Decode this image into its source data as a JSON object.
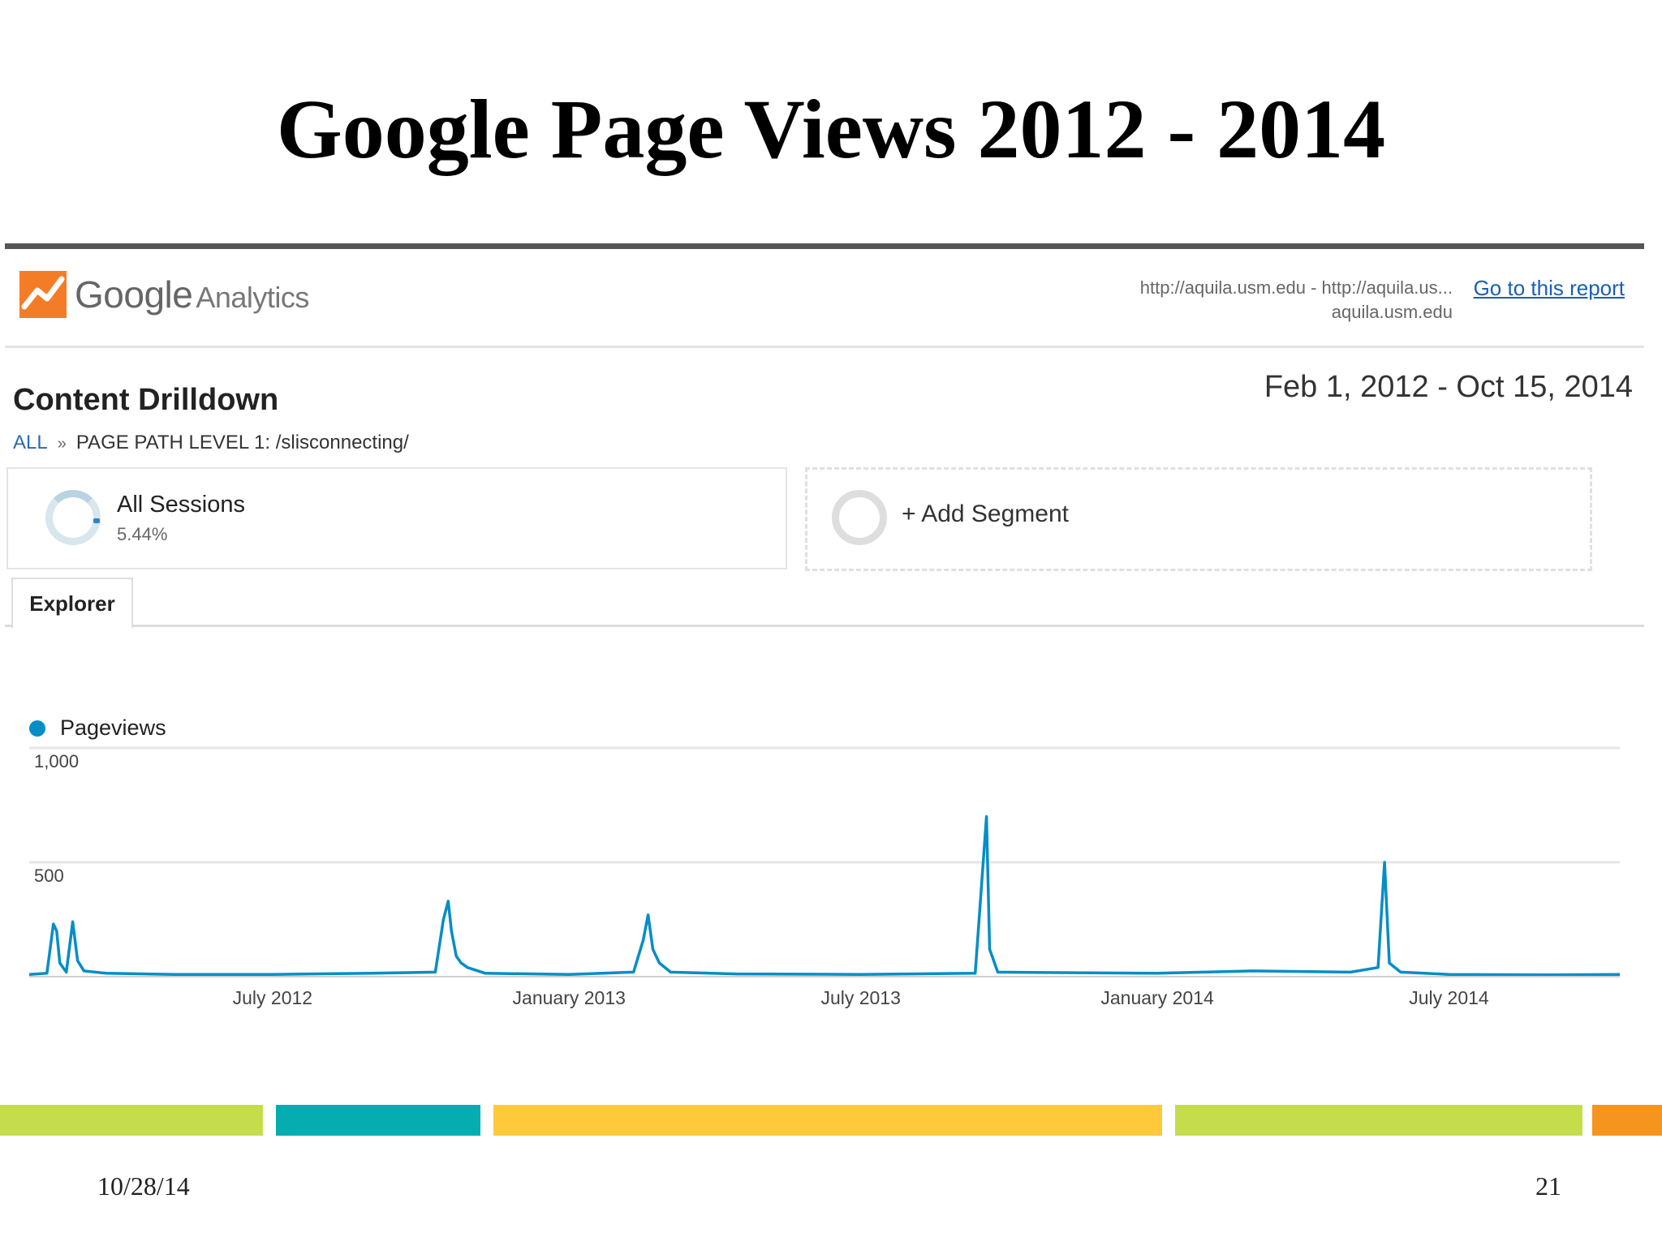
{
  "slide": {
    "title": "Google Page Views 2012 - 2014",
    "footer_date": "10/28/14",
    "page_number": "21",
    "accent_bars": [
      "#c5dd4b",
      "#05adb0",
      "#ffc93c",
      "#c5dd4b",
      "#f7941e"
    ]
  },
  "ga": {
    "brand": "Google",
    "product": "Analytics",
    "site_line1": "http://aquila.usm.edu - http://aquila.us...",
    "site_line2": "aquila.usm.edu",
    "report_link": "Go to this report",
    "report_heading": "Content Drilldown",
    "date_range": "Feb 1, 2012 - Oct 15, 2014",
    "breadcrumb": {
      "root": "ALL",
      "separator": "»",
      "path": "PAGE PATH LEVEL 1: /slisconnecting/"
    },
    "segment": {
      "name": "All Sessions",
      "percent": "5.44%"
    },
    "add_segment": "+ Add Segment",
    "tab": "Explorer",
    "colors": {
      "link": "#1a5fb4",
      "series": "#058dc7"
    }
  },
  "chart_data": {
    "type": "line",
    "x_range": [
      "2012-02-01",
      "2014-10-15"
    ],
    "ylim": [
      0,
      1000
    ],
    "yticks": [
      1000,
      500
    ],
    "ytick_labels": [
      "1,000",
      "500"
    ],
    "x_tick_dates": [
      "2012-07-01",
      "2013-01-01",
      "2013-07-01",
      "2014-01-01",
      "2014-07-01"
    ],
    "x_tick_labels": [
      "July 2012",
      "January 2013",
      "July 2013",
      "January 2014",
      "July 2014"
    ],
    "grid": true,
    "legend_position": "top-left",
    "series": [
      {
        "name": "Pageviews",
        "color": "#058dc7",
        "points": [
          [
            "2012-02-01",
            10
          ],
          [
            "2012-02-12",
            15
          ],
          [
            "2012-02-16",
            230
          ],
          [
            "2012-02-18",
            200
          ],
          [
            "2012-02-20",
            60
          ],
          [
            "2012-02-24",
            20
          ],
          [
            "2012-02-28",
            240
          ],
          [
            "2012-03-02",
            70
          ],
          [
            "2012-03-06",
            25
          ],
          [
            "2012-03-20",
            15
          ],
          [
            "2012-05-01",
            10
          ],
          [
            "2012-07-01",
            10
          ],
          [
            "2012-09-01",
            15
          ],
          [
            "2012-10-10",
            20
          ],
          [
            "2012-10-15",
            250
          ],
          [
            "2012-10-18",
            330
          ],
          [
            "2012-10-20",
            200
          ],
          [
            "2012-10-23",
            90
          ],
          [
            "2012-10-26",
            60
          ],
          [
            "2012-10-30",
            40
          ],
          [
            "2012-11-10",
            15
          ],
          [
            "2013-01-01",
            10
          ],
          [
            "2013-02-10",
            20
          ],
          [
            "2013-02-16",
            160
          ],
          [
            "2013-02-19",
            270
          ],
          [
            "2013-02-22",
            120
          ],
          [
            "2013-02-26",
            60
          ],
          [
            "2013-03-05",
            20
          ],
          [
            "2013-04-15",
            12
          ],
          [
            "2013-07-01",
            10
          ],
          [
            "2013-09-10",
            15
          ],
          [
            "2013-09-17",
            700
          ],
          [
            "2013-09-19",
            120
          ],
          [
            "2013-09-24",
            20
          ],
          [
            "2014-01-01",
            15
          ],
          [
            "2014-03-01",
            25
          ],
          [
            "2014-05-01",
            20
          ],
          [
            "2014-05-18",
            40
          ],
          [
            "2014-05-22",
            500
          ],
          [
            "2014-05-25",
            60
          ],
          [
            "2014-06-01",
            20
          ],
          [
            "2014-07-01",
            10
          ],
          [
            "2014-09-01",
            8
          ],
          [
            "2014-10-15",
            10
          ]
        ]
      }
    ]
  }
}
